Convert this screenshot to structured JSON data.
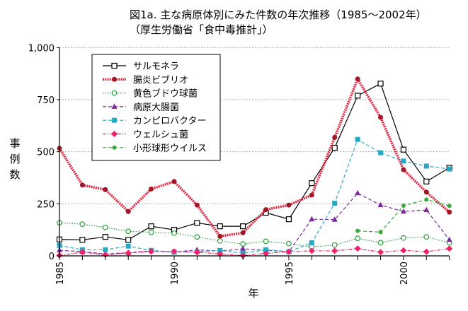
{
  "title": "図1a. 主な病原体別にみた件数の年次推移（1985～2002年）",
  "subtitle": "（厚生労働省「食中毒推計」）",
  "chart_data": {
    "type": "line",
    "title": "図1a. 主な病原体別にみた件数の年次推移（1985～2002年）",
    "subtitle": "（厚生労働省「食中毒推計」）",
    "xlabel": "年",
    "ylabel": "事例数",
    "xlim": [
      1985,
      2002
    ],
    "ylim": [
      0,
      1000
    ],
    "xticks": [
      "1985",
      "1990",
      "1995",
      "2000"
    ],
    "yticks": [
      "0",
      "250",
      "500",
      "750",
      "1,000"
    ],
    "grid": "horizontal dotted",
    "legend": "top-left",
    "x": [
      1985,
      1986,
      1987,
      1988,
      1989,
      1990,
      1991,
      1992,
      1993,
      1994,
      1995,
      1996,
      1997,
      1998,
      1999,
      2000,
      2001,
      2002
    ],
    "series": [
      {
        "name": "サルモネラ",
        "color": "#000000",
        "marker": "open-square",
        "line": "solid",
        "values": [
          79,
          77,
          91,
          77,
          142,
          125,
          158,
          142,
          142,
          207,
          176,
          349,
          519,
          769,
          827,
          510,
          357,
          423
        ]
      },
      {
        "name": "腸炎ビブリオ",
        "color": "#e8233f",
        "marker": "filled-circle",
        "line": "thick-dotted",
        "values": [
          516,
          340,
          318,
          213,
          321,
          357,
          244,
          94,
          111,
          222,
          244,
          292,
          569,
          849,
          665,
          414,
          306,
          210
        ]
      },
      {
        "name": "黄色ブドウ球菌",
        "color": "#2e9e3e",
        "marker": "open-circle",
        "line": "dotted",
        "values": [
          159,
          152,
          137,
          118,
          113,
          109,
          91,
          72,
          57,
          70,
          59,
          43,
          52,
          84,
          63,
          86,
          91,
          63
        ]
      },
      {
        "name": "病原大腸菌",
        "color": "#7b2a9b",
        "marker": "triangle",
        "line": "dashed",
        "values": [
          27,
          20,
          9,
          15,
          24,
          18,
          29,
          23,
          34,
          27,
          20,
          176,
          174,
          301,
          244,
          213,
          220,
          77
        ]
      },
      {
        "name": "カンピロバクター",
        "color": "#27a8c4",
        "marker": "filled-square",
        "line": "dashed",
        "values": [
          50,
          29,
          29,
          47,
          26,
          18,
          20,
          26,
          13,
          29,
          20,
          63,
          253,
          559,
          495,
          455,
          431,
          417
        ]
      },
      {
        "name": "ウェルシュ菌",
        "color": "#f0206a",
        "marker": "diamond",
        "line": "dash-dot",
        "values": [
          2,
          18,
          5,
          14,
          21,
          21,
          18,
          9,
          1,
          12,
          20,
          24,
          24,
          35,
          18,
          26,
          20,
          35
        ]
      },
      {
        "name": "小形球形ウイルス",
        "color": "#3aa53a",
        "marker": "filled-circle-small",
        "line": "dashed",
        "values": [
          null,
          null,
          null,
          null,
          null,
          null,
          null,
          null,
          null,
          null,
          null,
          null,
          null,
          120,
          114,
          241,
          270,
          240
        ]
      }
    ]
  }
}
